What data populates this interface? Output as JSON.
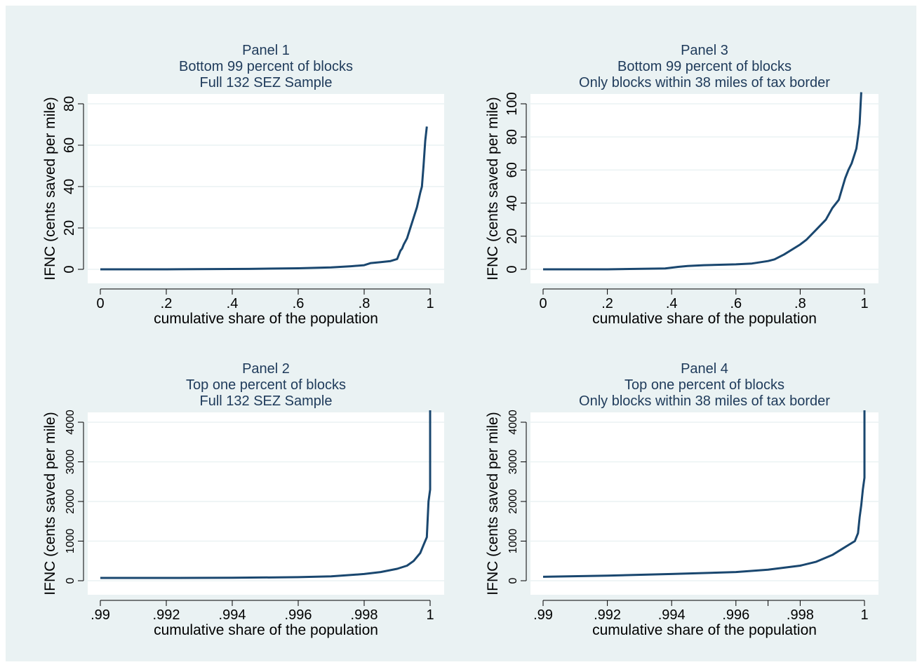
{
  "colors": {
    "figure_background": "#eaf2f3",
    "plot_background": "#ffffff",
    "line": "#1a476f",
    "grid": "#eaf2f3",
    "title": "#1e3a5a"
  },
  "chart_data": [
    {
      "type": "line",
      "title_lines": [
        "Panel 1",
        "Bottom 99 percent of blocks",
        "Full 132 SEZ Sample"
      ],
      "xlabel": "cumulative share of the population",
      "ylabel": "IFNC (cents saved per mile)",
      "xlim": [
        0,
        1
      ],
      "ylim": [
        0,
        80
      ],
      "xticks": [
        0,
        0.2,
        0.4,
        0.6,
        0.8,
        1
      ],
      "xtick_labels": [
        "0",
        ".2",
        ".4",
        ".6",
        ".8",
        "1"
      ],
      "yticks": [
        0,
        20,
        40,
        60,
        80
      ],
      "ytick_labels": [
        "0",
        "20",
        "40",
        "60",
        "80"
      ],
      "grid": true,
      "series": [
        {
          "x": [
            0,
            0.2,
            0.45,
            0.6,
            0.7,
            0.76,
            0.8,
            0.82,
            0.85,
            0.88,
            0.9,
            0.91,
            0.915,
            0.92,
            0.93,
            0.94,
            0.95,
            0.96,
            0.97,
            0.975,
            0.98,
            0.985,
            0.99
          ],
          "y": [
            0,
            0,
            0.2,
            0.5,
            0.9,
            1.5,
            2,
            3,
            3.5,
            4,
            5,
            9,
            10,
            12,
            15,
            20,
            25,
            30,
            37,
            40,
            50,
            62,
            69
          ]
        }
      ]
    },
    {
      "type": "line",
      "title_lines": [
        "Panel 3",
        "Bottom 99 percent of blocks",
        "Only blocks within 38 miles of tax border"
      ],
      "xlabel": "cumulative share of the population",
      "ylabel": "IFNC (cents saved per mile)",
      "xlim": [
        0,
        1
      ],
      "ylim": [
        0,
        100
      ],
      "xticks": [
        0,
        0.2,
        0.4,
        0.6,
        0.8,
        1
      ],
      "xtick_labels": [
        "0",
        ".2",
        ".4",
        ".6",
        ".8",
        "1"
      ],
      "yticks": [
        0,
        20,
        40,
        60,
        80,
        100
      ],
      "ytick_labels": [
        "0",
        "20",
        "40",
        "60",
        "80",
        "100"
      ],
      "grid": true,
      "series": [
        {
          "x": [
            0,
            0.2,
            0.38,
            0.42,
            0.45,
            0.5,
            0.6,
            0.65,
            0.7,
            0.72,
            0.75,
            0.8,
            0.82,
            0.85,
            0.88,
            0.9,
            0.92,
            0.94,
            0.95,
            0.96,
            0.97,
            0.975,
            0.98,
            0.985,
            0.99
          ],
          "y": [
            0,
            0,
            0.5,
            1.5,
            2,
            2.5,
            3,
            3.5,
            5,
            6,
            9,
            15,
            18,
            24,
            30,
            37,
            42,
            55,
            60,
            64,
            70,
            73,
            80,
            88,
            107
          ]
        }
      ]
    },
    {
      "type": "line",
      "title_lines": [
        "Panel 2",
        "Top one percent of blocks",
        "Full 132 SEZ Sample"
      ],
      "xlabel": "cumulative share of the population",
      "ylabel": "IFNC (cents saved per mile)",
      "xlim": [
        0.99,
        1
      ],
      "ylim": [
        0,
        4000
      ],
      "xticks": [
        0.99,
        0.992,
        0.994,
        0.996,
        0.998,
        1
      ],
      "xtick_labels": [
        ".99",
        ".992",
        ".994",
        ".996",
        ".998",
        "1"
      ],
      "yticks": [
        0,
        1000,
        2000,
        3000,
        4000
      ],
      "ytick_labels": [
        "0",
        "1000",
        "2000",
        "3000",
        "4000"
      ],
      "grid": true,
      "series": [
        {
          "x": [
            0.99,
            0.992,
            0.994,
            0.996,
            0.997,
            0.998,
            0.9985,
            0.999,
            0.9993,
            0.9995,
            0.9997,
            0.9998,
            0.9999,
            0.99995,
            1,
            1
          ],
          "y": [
            70,
            70,
            75,
            90,
            110,
            170,
            220,
            300,
            380,
            500,
            700,
            900,
            1100,
            2000,
            2300,
            4300
          ]
        }
      ]
    },
    {
      "type": "line",
      "title_lines": [
        "Panel 4",
        "Top one percent of blocks",
        "Only blocks within 38 miles of tax border"
      ],
      "xlabel": "cumulative share of the population",
      "ylabel": "IFNC (cents saved per mile)",
      "xlim": [
        0.99,
        1
      ],
      "ylim": [
        0,
        4000
      ],
      "xticks": [
        0.99,
        0.992,
        0.994,
        0.996,
        0.997,
        0.998,
        1
      ],
      "xtick_labels": [
        ".99",
        ".992",
        ".994",
        ".996",
        "",
        ".998",
        "1"
      ],
      "yticks": [
        0,
        1000,
        2000,
        3000,
        4000
      ],
      "ytick_labels": [
        "0",
        "1000",
        "2000",
        "3000",
        "4000"
      ],
      "grid": true,
      "series": [
        {
          "x": [
            0.99,
            0.992,
            0.994,
            0.996,
            0.997,
            0.998,
            0.9985,
            0.999,
            0.9993,
            0.9995,
            0.9997,
            0.9998,
            0.99985,
            0.9999,
            0.99995,
            1,
            1
          ],
          "y": [
            100,
            130,
            170,
            220,
            280,
            380,
            480,
            650,
            800,
            900,
            1000,
            1200,
            1600,
            1900,
            2300,
            2600,
            4300
          ]
        }
      ]
    }
  ]
}
